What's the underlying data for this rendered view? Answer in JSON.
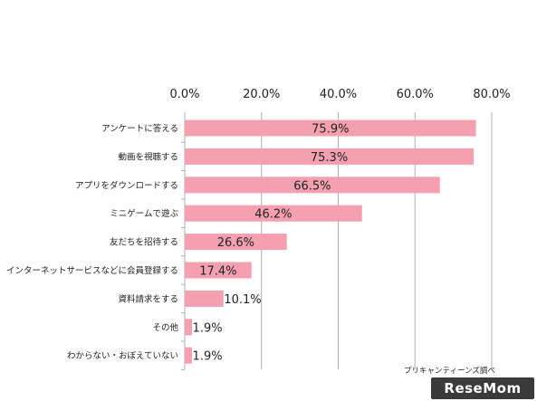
{
  "chart_data": {
    "type": "bar",
    "orientation": "horizontal",
    "categories": [
      "アンケートに答える",
      "動画を視聴する",
      "アプリをダウンロードする",
      "ミニゲームで遊ぶ",
      "友だちを招待する",
      "インターネットサービスなどに会員登録する",
      "資料請求をする",
      "その他",
      "わからない・おぼえていない"
    ],
    "values": [
      75.9,
      75.3,
      66.5,
      46.2,
      26.6,
      17.4,
      10.1,
      1.9,
      1.9
    ],
    "value_labels": [
      "75.9%",
      "75.3%",
      "66.5%",
      "46.2%",
      "26.6%",
      "17.4%",
      "10.1%",
      "1.9%",
      "1.9%"
    ],
    "xlim": [
      0,
      80
    ],
    "ticks": [
      0,
      20,
      40,
      60,
      80
    ],
    "tick_labels": [
      "0.0%",
      "20.0%",
      "40.0%",
      "60.0%",
      "80.0%"
    ],
    "axis_position": "top",
    "grid": true,
    "bar_color": "#f4a0b0",
    "grid_color": "#b0b0b0",
    "source": "プリキャンティーンズ調べ",
    "watermark": "ReseMom"
  }
}
